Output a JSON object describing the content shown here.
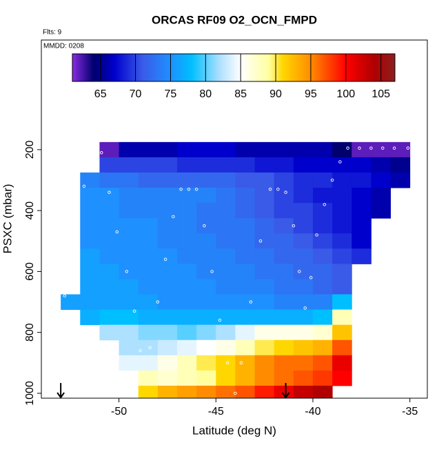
{
  "chart_data": {
    "type": "heatmap",
    "title": "ORCAS RF09 O2_OCN_FMPD",
    "subtitle": "Flts: 9",
    "annotation": "MMDD: 0208",
    "xlabel": "Latitude (deg N)",
    "ylabel": "PSXC (mbar)",
    "xlim": [
      -54,
      -34.1
    ],
    "xticks": [
      -50,
      -45,
      -40,
      -35
    ],
    "ylim": [
      1016,
      -160
    ],
    "yticks": [
      200,
      400,
      600,
      800,
      1000
    ],
    "x_edges": [
      -53,
      -52,
      -51,
      -50,
      -49,
      -48,
      -47,
      -46,
      -45,
      -44,
      -43,
      -42,
      -41,
      -40,
      -39,
      -38,
      -37,
      -36,
      -35
    ],
    "y_edges": [
      175,
      225,
      275,
      325,
      375,
      425,
      475,
      525,
      575,
      625,
      675,
      725,
      775,
      825,
      875,
      925,
      975,
      1025
    ],
    "z": [
      [
        null,
        null,
        62,
        66,
        66,
        66,
        67,
        67,
        67,
        66,
        66,
        66,
        66,
        66,
        64,
        62,
        62,
        62
      ],
      [
        null,
        null,
        70,
        70,
        70,
        70,
        69,
        69,
        69,
        69,
        68,
        68,
        67,
        67,
        67,
        67,
        66,
        65
      ],
      [
        null,
        74,
        73,
        73,
        72,
        72,
        72,
        72,
        72,
        71,
        71,
        70,
        69,
        69,
        68,
        68,
        67,
        66
      ],
      [
        null,
        75,
        75,
        74,
        74,
        74,
        74,
        74,
        73,
        72,
        71,
        70,
        69,
        68,
        68,
        67,
        66,
        null
      ],
      [
        null,
        75,
        75,
        74,
        74,
        74,
        74,
        73,
        73,
        72,
        71,
        70,
        70,
        69,
        68,
        67,
        66,
        null
      ],
      [
        null,
        75,
        75,
        75,
        75,
        74,
        74,
        73,
        73,
        73,
        72,
        71,
        70,
        69,
        68,
        67,
        null,
        null
      ],
      [
        null,
        75,
        75,
        75,
        75,
        74,
        74,
        74,
        73,
        73,
        72,
        72,
        71,
        70,
        69,
        67,
        null,
        null
      ],
      [
        null,
        76,
        75,
        75,
        75,
        75,
        74,
        74,
        74,
        73,
        73,
        72,
        72,
        71,
        70,
        69,
        null,
        null
      ],
      [
        null,
        76,
        76,
        75,
        75,
        75,
        75,
        74,
        74,
        74,
        73,
        73,
        72,
        72,
        71,
        null,
        null,
        null
      ],
      [
        null,
        76,
        76,
        76,
        75,
        75,
        75,
        75,
        74,
        74,
        74,
        73,
        73,
        72,
        71,
        null,
        null,
        null
      ],
      [
        76,
        76,
        76,
        76,
        76,
        75,
        75,
        75,
        75,
        75,
        75,
        74,
        74,
        74,
        78,
        null,
        null,
        null
      ],
      [
        null,
        77,
        78,
        78,
        77,
        77,
        77,
        77,
        77,
        77,
        77,
        77,
        77,
        78,
        88,
        null,
        null,
        null
      ],
      [
        null,
        null,
        82,
        82,
        81,
        81,
        80,
        81,
        82,
        84,
        86,
        86,
        86,
        87,
        92,
        null,
        null,
        null
      ],
      [
        null,
        null,
        null,
        82,
        82,
        83,
        84,
        85,
        86,
        88,
        90,
        91,
        92,
        93,
        97,
        null,
        null,
        null
      ],
      [
        null,
        null,
        null,
        84,
        84,
        86,
        88,
        90,
        91,
        93,
        95,
        96,
        96,
        97,
        101,
        null,
        null,
        null
      ],
      [
        null,
        null,
        null,
        null,
        88,
        87,
        88,
        89,
        91,
        93,
        95,
        96,
        97,
        98,
        100,
        null,
        null,
        null
      ],
      [
        null,
        null,
        null,
        null,
        91,
        93,
        94,
        95,
        96,
        97,
        99,
        101,
        103,
        104,
        null,
        null,
        null,
        null
      ]
    ],
    "clim": [
      61,
      107
    ],
    "cticks": [
      65,
      70,
      75,
      80,
      85,
      90,
      95,
      100,
      105
    ],
    "colorscale": [
      [
        61,
        "#8a2be2"
      ],
      [
        64,
        "#00006e"
      ],
      [
        67,
        "#0000cd"
      ],
      [
        71,
        "#3a5ae8"
      ],
      [
        75,
        "#1e90ff"
      ],
      [
        78,
        "#00bfff"
      ],
      [
        82,
        "#aee0ff"
      ],
      [
        85,
        "#ffffff"
      ],
      [
        89,
        "#ffffa0"
      ],
      [
        91,
        "#ffd700"
      ],
      [
        95,
        "#ff8c00"
      ],
      [
        100,
        "#ff0000"
      ],
      [
        104,
        "#b00000"
      ],
      [
        107,
        "#8b2020"
      ]
    ],
    "track": {
      "x": [
        -51.2,
        -51.8,
        -52.3,
        -52.6,
        -52.8,
        -50.9,
        -50.5,
        -50.1,
        -49.6,
        -49.2,
        -48.9,
        -48.4,
        -48.0,
        -47.6,
        -47.2,
        -46.8,
        -46.4,
        -46.0,
        -45.6,
        -45.2,
        -44.8,
        -44.4,
        -44.0,
        -43.7,
        -43.2,
        -42.7,
        -42.2,
        -41.8,
        -41.4,
        -41.0,
        -40.7,
        -40.4,
        -40.1,
        -39.8,
        -39.4,
        -39.0,
        -38.6,
        -38.2,
        -37.6,
        -37.0,
        -36.4,
        -35.8,
        -35.1
      ],
      "y": [
        200,
        320,
        440,
        560,
        680,
        210,
        340,
        470,
        600,
        730,
        860,
        850,
        700,
        560,
        420,
        330,
        330,
        330,
        450,
        600,
        760,
        900,
        1000,
        900,
        700,
        500,
        330,
        330,
        340,
        450,
        600,
        720,
        620,
        480,
        380,
        300,
        240,
        195,
        195,
        195,
        195,
        195,
        195
      ]
    },
    "arrows": [
      -53,
      -41.4
    ]
  }
}
